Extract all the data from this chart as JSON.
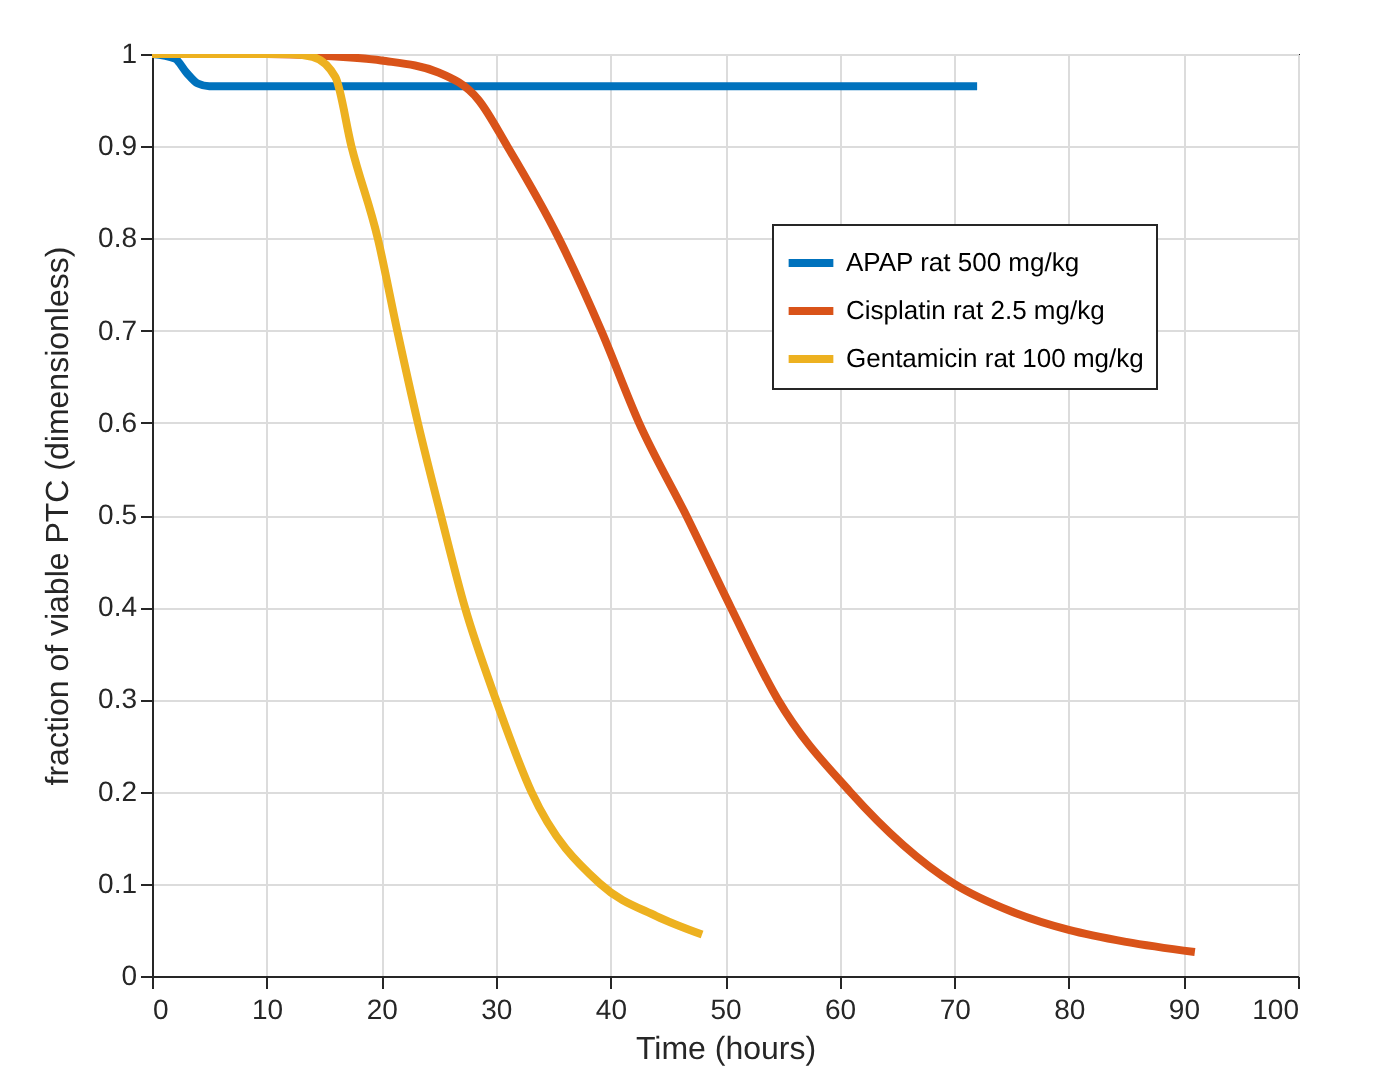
{
  "chart_data": {
    "type": "line",
    "xlabel": "Time (hours)",
    "ylabel": "fraction of viable PTC (dimensionless)",
    "xlim": [
      0,
      100
    ],
    "ylim": [
      0,
      1
    ],
    "xticks": [
      0,
      10,
      20,
      30,
      40,
      50,
      60,
      70,
      80,
      90,
      100
    ],
    "yticks": [
      0,
      0.1,
      0.2,
      0.3,
      0.4,
      0.5,
      0.6,
      0.7,
      0.8,
      0.9,
      1
    ],
    "grid": true,
    "legend": "top right",
    "series": [
      {
        "name": "APAP rat 500 mg/kg",
        "color": "#0072bd",
        "x": [
          0,
          2,
          3,
          4,
          5,
          72
        ],
        "values": [
          1,
          0.995,
          0.98,
          0.968,
          0.965,
          0.965
        ]
      },
      {
        "name": "Cisplatin rat 2.5 mg/kg",
        "color": "#d95319",
        "x": [
          0,
          10,
          15,
          20,
          25,
          28.5,
          31,
          35.5,
          39.2,
          42.5,
          46.6,
          50.5,
          54.6,
          60.9,
          70,
          75,
          80,
          85,
          91
        ],
        "values": [
          1,
          1,
          0.998,
          0.993,
          0.98,
          0.95,
          0.9,
          0.8,
          0.7,
          0.6,
          0.5,
          0.4,
          0.3,
          0.2,
          0.1,
          0.07,
          0.05,
          0.037,
          0.026
        ]
      },
      {
        "name": "Gentamicin rat 100 mg/kg",
        "color": "#edb120",
        "x": [
          0,
          12,
          14,
          16,
          17.4,
          19.7,
          21.4,
          23.2,
          25.2,
          27.3,
          30,
          33.1,
          39.1,
          44,
          48
        ],
        "values": [
          1,
          1,
          0.997,
          0.975,
          0.9,
          0.8,
          0.7,
          0.6,
          0.5,
          0.4,
          0.3,
          0.2,
          0.1,
          0.065,
          0.045
        ]
      }
    ]
  }
}
